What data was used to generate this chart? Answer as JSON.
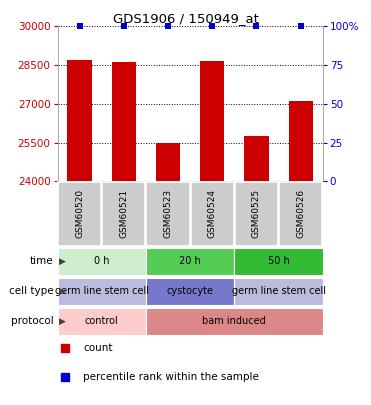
{
  "title_text": "GDS1906 / 150949_at",
  "samples": [
    "GSM60520",
    "GSM60521",
    "GSM60523",
    "GSM60524",
    "GSM60525",
    "GSM60526"
  ],
  "counts": [
    28700,
    28620,
    25500,
    28660,
    25750,
    27100
  ],
  "percentiles": [
    100,
    100,
    100,
    100,
    100,
    100
  ],
  "ylim_left": [
    24000,
    30000
  ],
  "ylim_right": [
    0,
    100
  ],
  "yticks_left": [
    24000,
    25500,
    27000,
    28500,
    30000
  ],
  "yticks_right": [
    0,
    25,
    50,
    75,
    100
  ],
  "bar_color": "#cc0000",
  "percentile_color": "#0000cc",
  "time_groups": [
    {
      "label": "0 h",
      "start": 0,
      "end": 2,
      "color": "#cceecc"
    },
    {
      "label": "20 h",
      "start": 2,
      "end": 4,
      "color": "#55cc55"
    },
    {
      "label": "50 h",
      "start": 4,
      "end": 6,
      "color": "#33bb33"
    }
  ],
  "cell_type_groups": [
    {
      "label": "germ line stem cell",
      "start": 0,
      "end": 2,
      "color": "#bbbbdd"
    },
    {
      "label": "cystocyte",
      "start": 2,
      "end": 4,
      "color": "#7777cc"
    },
    {
      "label": "germ line stem cell",
      "start": 4,
      "end": 6,
      "color": "#bbbbdd"
    }
  ],
  "protocol_groups": [
    {
      "label": "control",
      "start": 0,
      "end": 2,
      "color": "#ffcccc"
    },
    {
      "label": "bam induced",
      "start": 2,
      "end": 6,
      "color": "#dd8888"
    }
  ],
  "legend_items": [
    {
      "color": "#cc0000",
      "label": "count"
    },
    {
      "color": "#0000cc",
      "label": "percentile rank within the sample"
    }
  ],
  "bar_width": 0.55,
  "sample_bg_color": "#cccccc",
  "figsize": [
    3.71,
    4.05
  ],
  "dpi": 100
}
